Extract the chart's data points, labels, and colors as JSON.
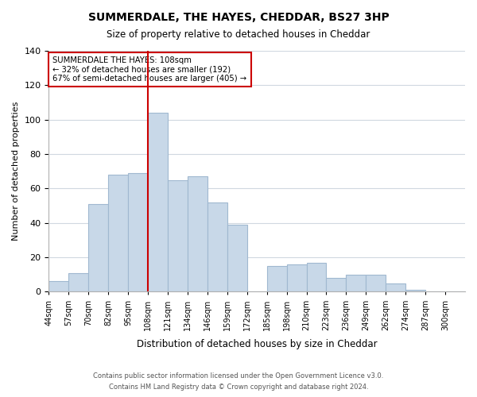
{
  "title": "SUMMERDALE, THE HAYES, CHEDDAR, BS27 3HP",
  "subtitle": "Size of property relative to detached houses in Cheddar",
  "xlabel": "Distribution of detached houses by size in Cheddar",
  "ylabel": "Number of detached properties",
  "bin_labels": [
    "44sqm",
    "57sqm",
    "70sqm",
    "82sqm",
    "95sqm",
    "108sqm",
    "121sqm",
    "134sqm",
    "146sqm",
    "159sqm",
    "172sqm",
    "185sqm",
    "198sqm",
    "210sqm",
    "223sqm",
    "236sqm",
    "249sqm",
    "262sqm",
    "274sqm",
    "287sqm",
    "300sqm"
  ],
  "bar_heights": [
    6,
    11,
    51,
    68,
    69,
    104,
    65,
    67,
    52,
    39,
    0,
    15,
    16,
    17,
    8,
    10,
    10,
    5,
    1,
    0,
    0
  ],
  "bar_color": "#c8d8e8",
  "bar_edge_color": "#a0b8d0",
  "vline_x": 5,
  "vline_color": "#cc0000",
  "annotation_line1": "SUMMERDALE THE HAYES: 108sqm",
  "annotation_line2": "← 32% of detached houses are smaller (192)",
  "annotation_line3": "67% of semi-detached houses are larger (405) →",
  "annotation_box_edge": "#cc0000",
  "ylim": [
    0,
    140
  ],
  "yticks": [
    0,
    20,
    40,
    60,
    80,
    100,
    120,
    140
  ],
  "footer1": "Contains HM Land Registry data © Crown copyright and database right 2024.",
  "footer2": "Contains public sector information licensed under the Open Government Licence v3.0.",
  "background_color": "#ffffff",
  "grid_color": "#d0d8e0"
}
